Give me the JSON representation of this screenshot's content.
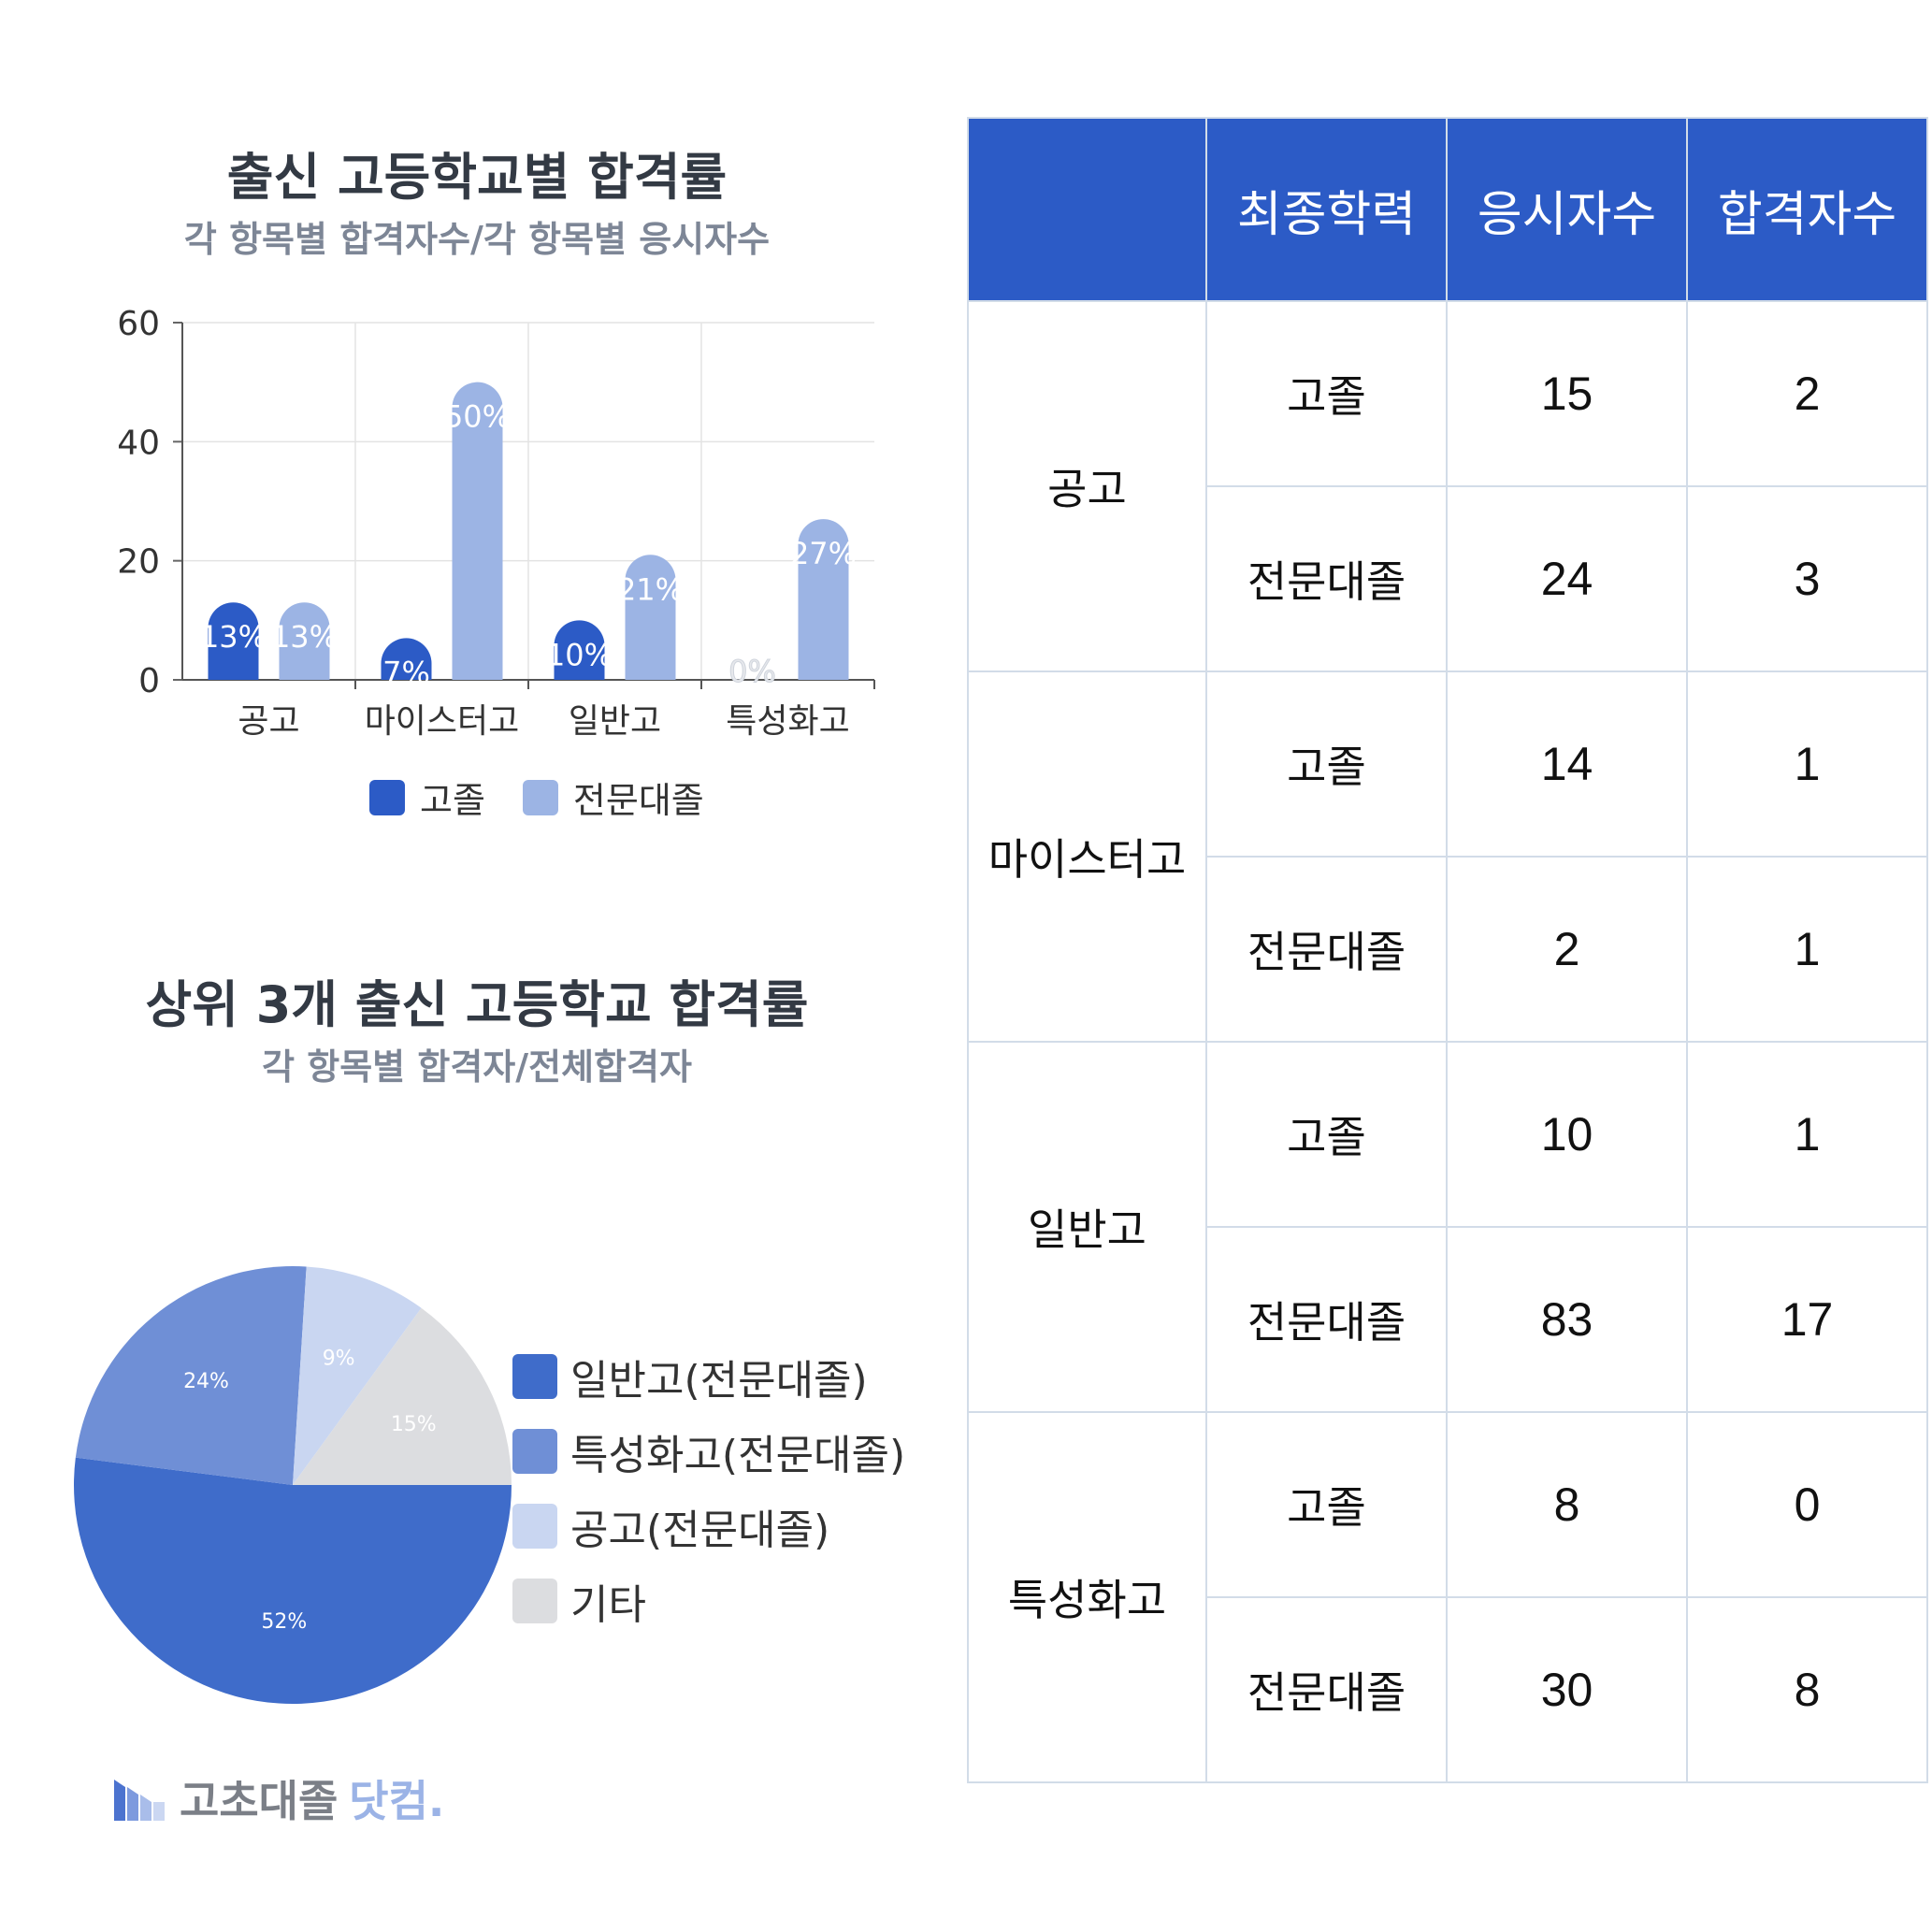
{
  "bar_chart": {
    "title": "출신 고등학교별 합격률",
    "subtitle": "각 항목별 합격자수/각 항목별 응시자수"
  },
  "pie_chart": {
    "title": "상위 3개 출신 고등학교 합격률",
    "subtitle": "각 항목별 합격자/전체합격자"
  },
  "chart_data": [
    {
      "type": "bar",
      "title": "출신 고등학교별 합격률",
      "subtitle": "각 항목별 합격자수/각 항목별 응시자수",
      "categories": [
        "공고",
        "마이스터고",
        "일반고",
        "특성화고"
      ],
      "series": [
        {
          "name": "고졸",
          "color": "#2c5bc6",
          "values": [
            13,
            7,
            10,
            0
          ],
          "labels": [
            "13%",
            "7%",
            "10%",
            "0%"
          ]
        },
        {
          "name": "전문대졸",
          "color": "#9cb4e4",
          "values": [
            13,
            50,
            21,
            27
          ],
          "labels": [
            "13%",
            "50%",
            "21%",
            "27%"
          ]
        }
      ],
      "yticks": [
        0,
        20,
        40,
        60
      ],
      "ylim": [
        0,
        60
      ],
      "grid": true,
      "legend": "bottom"
    },
    {
      "type": "pie",
      "title": "상위 3개 출신 고등학교 합격률",
      "subtitle": "각 항목별 합격자/전체합격자",
      "slices": [
        {
          "name": "일반고(전문대졸)",
          "value": 52,
          "label": "52%",
          "color": "#3f6cca"
        },
        {
          "name": "특성화고(전문대졸)",
          "value": 24,
          "label": "24%",
          "color": "#6f8fd6"
        },
        {
          "name": "공고(전문대졸)",
          "value": 9,
          "label": "9%",
          "color": "#c9d6f1"
        },
        {
          "name": "기타",
          "value": 15,
          "label": "15%",
          "color": "#dcdde0"
        }
      ],
      "legend": "right"
    }
  ],
  "table": {
    "headers": [
      "",
      "최종학력",
      "응시자수",
      "합격자수"
    ],
    "groups": [
      {
        "school": "공고",
        "rows": [
          {
            "edu": "고졸",
            "applicants": "15",
            "passed": "2"
          },
          {
            "edu": "전문대졸",
            "applicants": "24",
            "passed": "3"
          }
        ]
      },
      {
        "school": "마이스터고",
        "rows": [
          {
            "edu": "고졸",
            "applicants": "14",
            "passed": "1"
          },
          {
            "edu": "전문대졸",
            "applicants": "2",
            "passed": "1"
          }
        ]
      },
      {
        "school": "일반고",
        "rows": [
          {
            "edu": "고졸",
            "applicants": "10",
            "passed": "1"
          },
          {
            "edu": "전문대졸",
            "applicants": "83",
            "passed": "17"
          }
        ]
      },
      {
        "school": "특성화고",
        "rows": [
          {
            "edu": "고졸",
            "applicants": "8",
            "passed": "0"
          },
          {
            "edu": "전문대졸",
            "applicants": "30",
            "passed": "8"
          }
        ]
      }
    ]
  },
  "logo": {
    "text_main": "고초대졸",
    "text_accent": "닷컴."
  },
  "colors": {
    "header_blue": "#2c5bc6",
    "grid": "#e3e3e3",
    "title": "#333a44",
    "subtitle": "#7d8696"
  }
}
